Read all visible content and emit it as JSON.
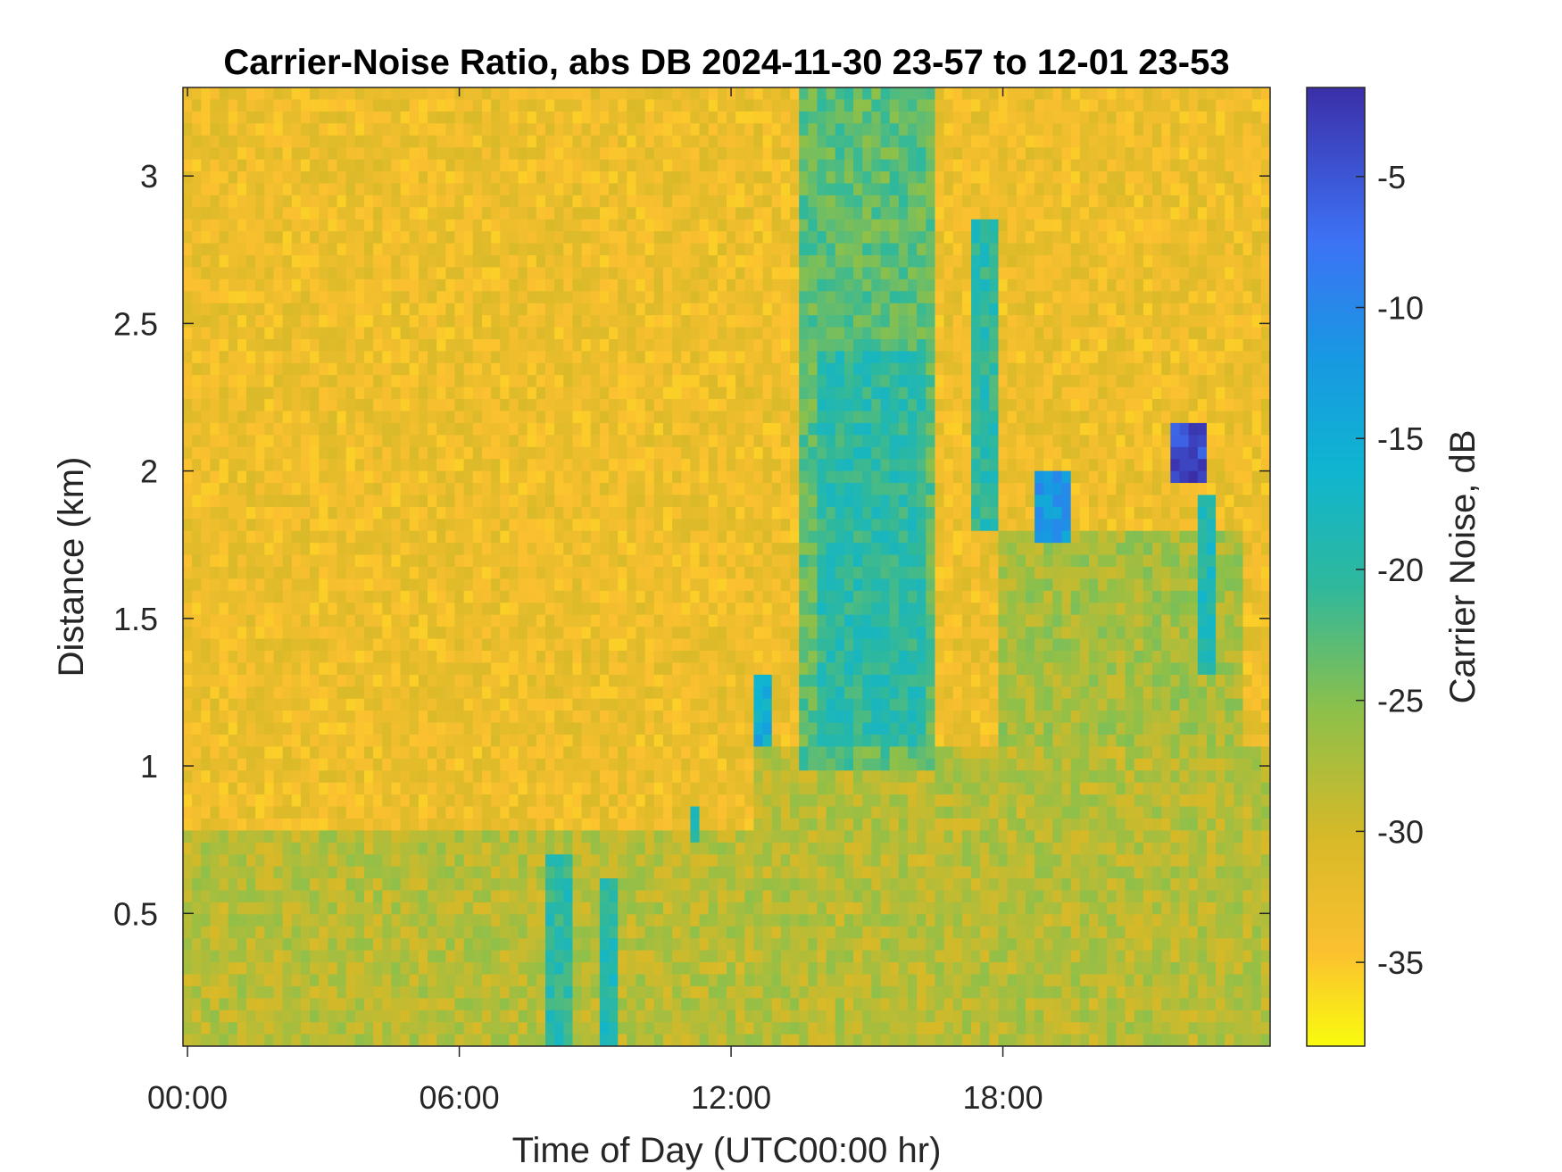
{
  "chart_data": {
    "type": "heatmap",
    "title": "Carrier-Noise Ratio, abs DB 2024-11-30 23-57 to 12-01 23-53",
    "xlabel": "Time of Day (UTC00:00 hr)",
    "ylabel": "Distance (km)",
    "colorbar_label": "Carrier Noise, dB",
    "x_ticks": [
      {
        "label": "00:00",
        "value": 0
      },
      {
        "label": "06:00",
        "value": 6
      },
      {
        "label": "12:00",
        "value": 12
      },
      {
        "label": "18:00",
        "value": 18
      }
    ],
    "y_ticks": [
      {
        "label": "0.5",
        "value": 0.5
      },
      {
        "label": "1",
        "value": 1
      },
      {
        "label": "1.5",
        "value": 1.5
      },
      {
        "label": "2",
        "value": 2
      },
      {
        "label": "2.5",
        "value": 2.5
      },
      {
        "label": "3",
        "value": 3
      }
    ],
    "colorbar_ticks": [
      {
        "label": "-5",
        "value": -5
      },
      {
        "label": "-10",
        "value": -10
      },
      {
        "label": "-15",
        "value": -15
      },
      {
        "label": "-20",
        "value": -20
      },
      {
        "label": "-25",
        "value": -25
      },
      {
        "label": "-30",
        "value": -30
      },
      {
        "label": "-35",
        "value": -35
      }
    ],
    "xlim": [
      -0.1,
      23.9
    ],
    "ylim": [
      0.05,
      3.3
    ],
    "clim": [
      -38.2,
      -1.6
    ],
    "colormap": "parula-reversed",
    "background_value": -33,
    "features": [
      {
        "t0": 0.0,
        "t1": 12.5,
        "d0": 0.05,
        "d1": 0.8,
        "value": -28
      },
      {
        "t0": 12.5,
        "t1": 23.9,
        "d0": 0.05,
        "d1": 1.05,
        "value": -28
      },
      {
        "t0": 18.0,
        "t1": 23.2,
        "d0": 1.05,
        "d1": 1.8,
        "value": -27
      },
      {
        "t0": 13.5,
        "t1": 16.5,
        "d0": 1.0,
        "d1": 3.3,
        "value": -23
      },
      {
        "t0": 14.0,
        "t1": 16.2,
        "d0": 1.05,
        "d1": 2.4,
        "value": -20
      },
      {
        "t0": 8.0,
        "t1": 8.4,
        "d0": 0.05,
        "d1": 0.7,
        "value": -20
      },
      {
        "t0": 9.1,
        "t1": 9.5,
        "d0": 0.05,
        "d1": 0.6,
        "value": -19
      },
      {
        "t0": 11.2,
        "t1": 11.3,
        "d0": 0.75,
        "d1": 0.85,
        "value": -19
      },
      {
        "t0": 12.6,
        "t1": 12.8,
        "d0": 1.05,
        "d1": 1.3,
        "value": -15
      },
      {
        "t0": 17.3,
        "t1": 17.8,
        "d0": 1.8,
        "d1": 2.85,
        "value": -20
      },
      {
        "t0": 18.7,
        "t1": 19.5,
        "d0": 1.75,
        "d1": 2.0,
        "value": -12
      },
      {
        "t0": 21.6,
        "t1": 22.4,
        "d0": 1.95,
        "d1": 2.15,
        "value": -4
      },
      {
        "t0": 22.3,
        "t1": 22.6,
        "d0": 1.3,
        "d1": 1.9,
        "value": -19
      }
    ]
  }
}
